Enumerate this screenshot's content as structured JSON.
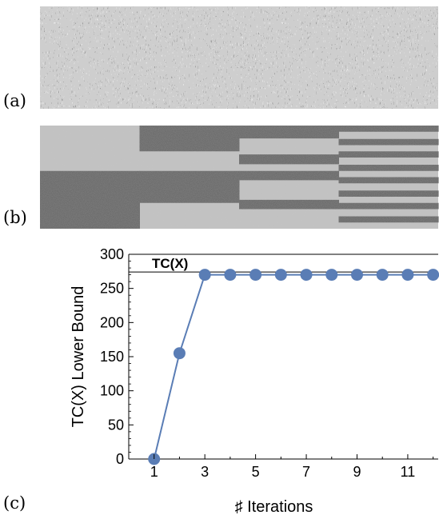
{
  "panels": {
    "a": {
      "label": "(a)"
    },
    "b": {
      "label": "(b)"
    },
    "c": {
      "label": "(c)"
    }
  },
  "colors": {
    "series": "#5a7db5",
    "dark_noise": "#5e5e5e",
    "light_noise": "#c4c4c4",
    "axis": "#000000"
  },
  "panel_b_data": {
    "description_free": true,
    "column_blocks": [
      {
        "dark_rows": [
          [
            0.44,
            1.0
          ]
        ]
      },
      {
        "dark_rows": [
          [
            0.0,
            0.25
          ],
          [
            0.44,
            0.75
          ]
        ]
      },
      {
        "dark_rows": [
          [
            0.0,
            0.125
          ],
          [
            0.28,
            0.375
          ],
          [
            0.44,
            0.53
          ],
          [
            0.72,
            0.81
          ]
        ]
      },
      {
        "dark_rows": [
          [
            0.0,
            0.06
          ],
          [
            0.13,
            0.19
          ],
          [
            0.25,
            0.31
          ],
          [
            0.38,
            0.44
          ],
          [
            0.5,
            0.56
          ],
          [
            0.63,
            0.69
          ],
          [
            0.75,
            0.81
          ],
          [
            0.88,
            0.94
          ]
        ]
      }
    ]
  },
  "chart_data": {
    "type": "line",
    "title": "",
    "xlabel": "♯ Iterations",
    "ylabel": "TC(X) Lower Bound",
    "xlim": [
      0,
      12.2
    ],
    "ylim": [
      0,
      300
    ],
    "x_ticks": [
      "1",
      "3",
      "5",
      "7",
      "9",
      "11"
    ],
    "x_tick_values": [
      1,
      3,
      5,
      7,
      9,
      11
    ],
    "y_ticks": [
      "0",
      "50",
      "100",
      "150",
      "200",
      "250",
      "300"
    ],
    "y_tick_values": [
      0,
      50,
      100,
      150,
      200,
      250,
      300
    ],
    "series": [
      {
        "x": [
          1,
          2,
          3,
          4,
          5,
          6,
          7,
          8,
          9,
          10,
          11,
          12
        ],
        "values": [
          0,
          155,
          270,
          270,
          270,
          270,
          270,
          270,
          270,
          270,
          270,
          270
        ]
      }
    ],
    "reference_line": {
      "label": "TC(X)",
      "value": 274
    },
    "grid": false
  }
}
